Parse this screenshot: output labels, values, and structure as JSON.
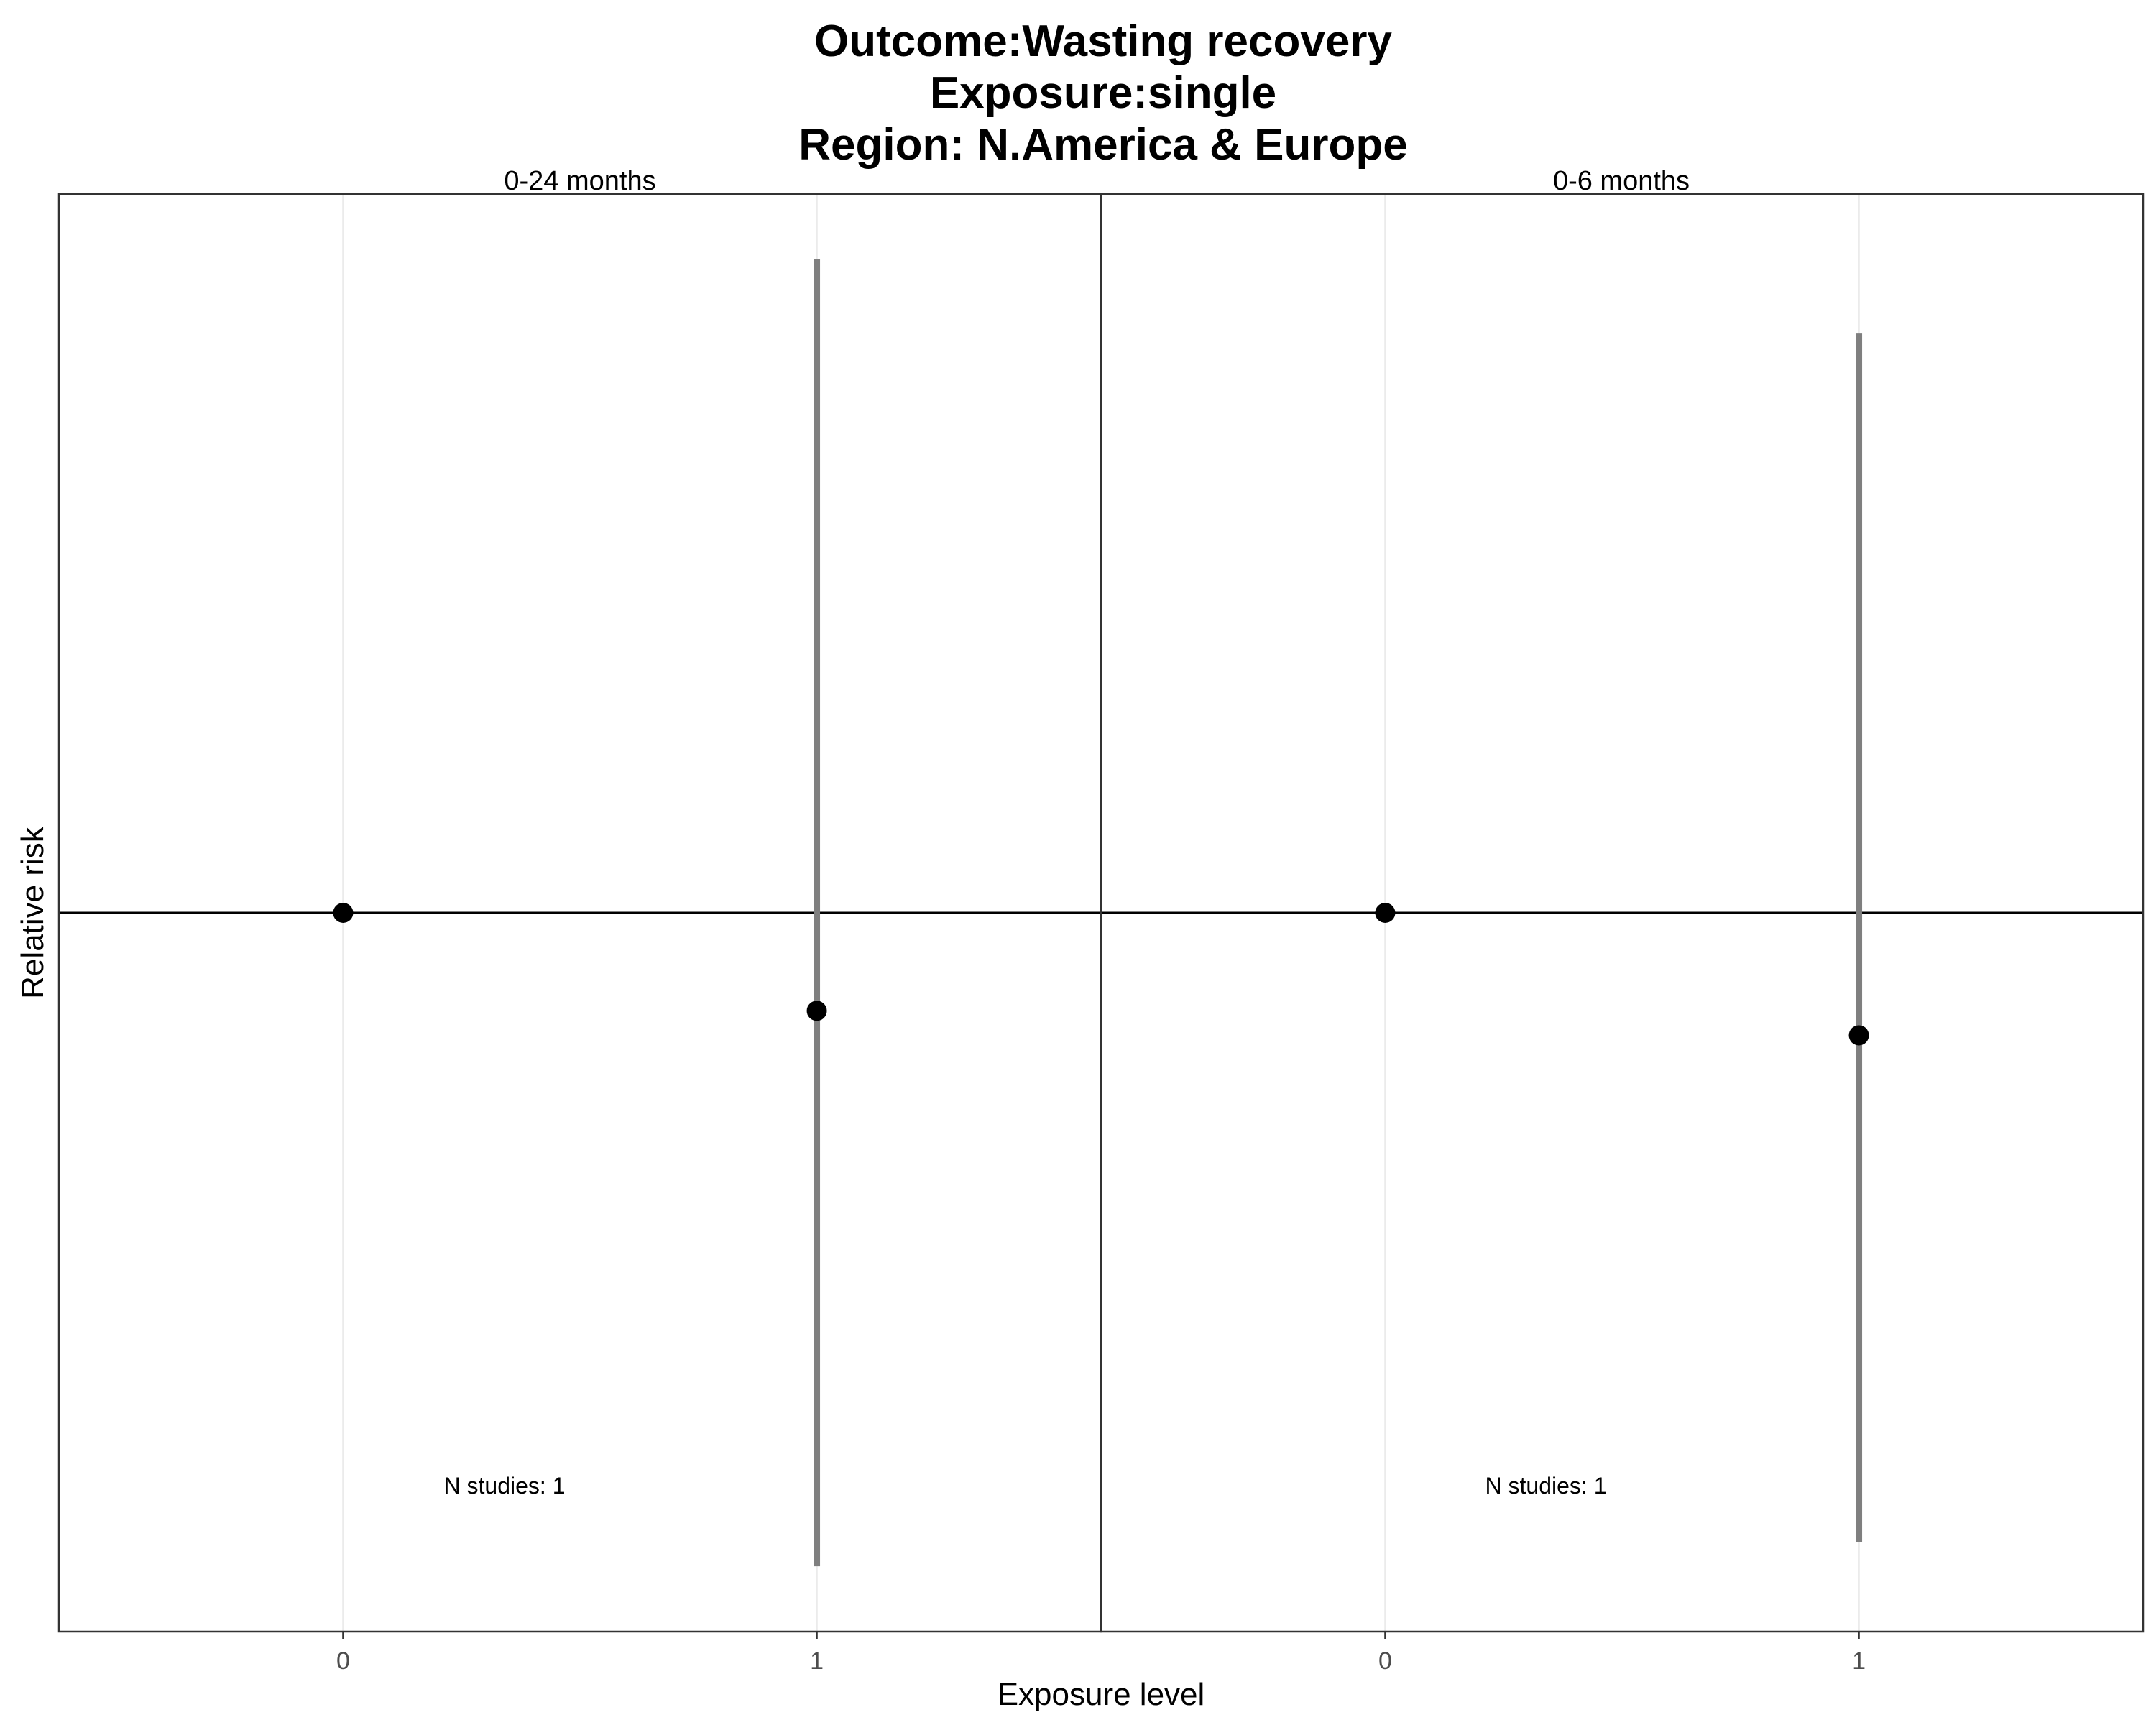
{
  "chart_data": {
    "type": "scatter",
    "title": [
      "Outcome:Wasting recovery",
      "Exposure:single",
      "Region: N.America & Europe"
    ],
    "xlabel": "Exposure level",
    "ylabel": "Relative risk",
    "x_categories": [
      "0",
      "1"
    ],
    "reference_line": 1,
    "ylim": [
      0.56,
      1.44
    ],
    "grid": "vertical-major",
    "panels": [
      {
        "label": "0-24 months",
        "annotation": "N studies: 1",
        "points": [
          {
            "x": "0",
            "y": 1.0
          },
          {
            "x": "1",
            "y": 0.94,
            "ci": [
              0.6,
              1.4
            ]
          }
        ]
      },
      {
        "label": "0-6 months",
        "annotation": "N studies: 1",
        "points": [
          {
            "x": "0",
            "y": 1.0
          },
          {
            "x": "1",
            "y": 0.925,
            "ci": [
              0.615,
              1.355
            ]
          }
        ]
      }
    ],
    "colors": {
      "point": "#000000",
      "errorbar": "#7f7f7f",
      "gridline": "#ebebeb",
      "panel_border": "#333333",
      "ref_line": "#000000"
    }
  }
}
